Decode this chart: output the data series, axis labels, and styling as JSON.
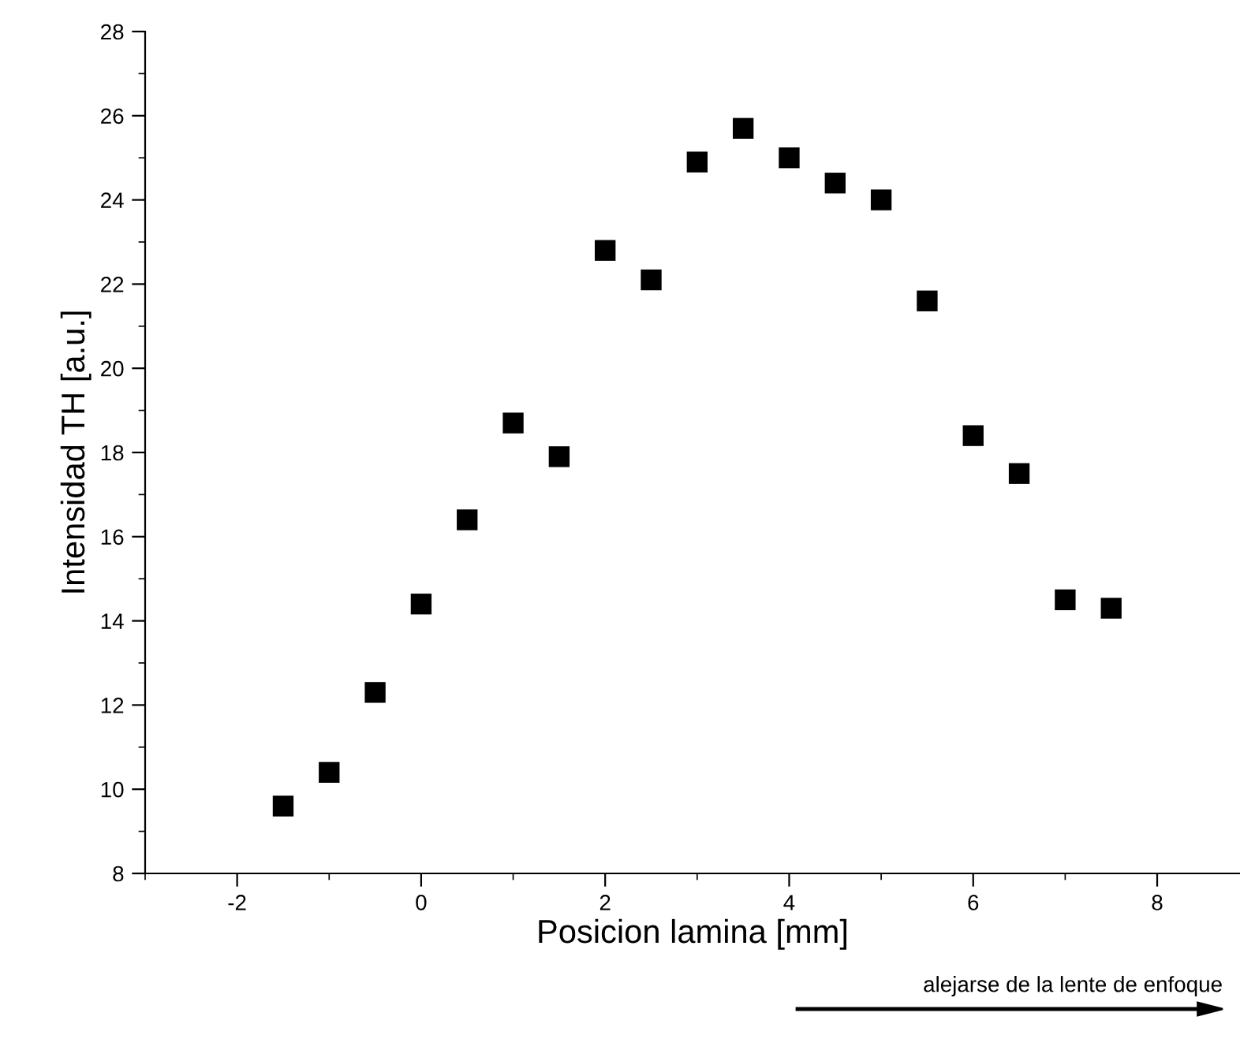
{
  "chart_data": {
    "type": "scatter",
    "xlabel": "Posicion lamina [mm]",
    "ylabel": "Intensidad TH [a.u.]",
    "x": [
      -1.5,
      -1,
      -0.5,
      0,
      0.5,
      1,
      1.5,
      2,
      2.5,
      3,
      3.5,
      4,
      4.5,
      5,
      5.5,
      6,
      6.5,
      7,
      7.5
    ],
    "series": [
      {
        "color": "#000000",
        "values": [
          9.6,
          10.4,
          12.3,
          14.4,
          16.4,
          18.7,
          17.9,
          22.8,
          22.1,
          24.9,
          25.7,
          25.0,
          24.4,
          24.0,
          21.6,
          18.4,
          17.5,
          14.5,
          14.3
        ]
      }
    ],
    "xlim": [
      -3,
      8.9
    ],
    "ylim": [
      8,
      28
    ],
    "xticks": [
      -2,
      0,
      2,
      4,
      6,
      8
    ],
    "yticks": [
      8,
      10,
      12,
      14,
      16,
      18,
      20,
      22,
      24,
      26,
      28
    ],
    "marker": "square",
    "grid": false,
    "legend": false,
    "annotations": [
      "alejarse de la lente de enfoque"
    ]
  }
}
